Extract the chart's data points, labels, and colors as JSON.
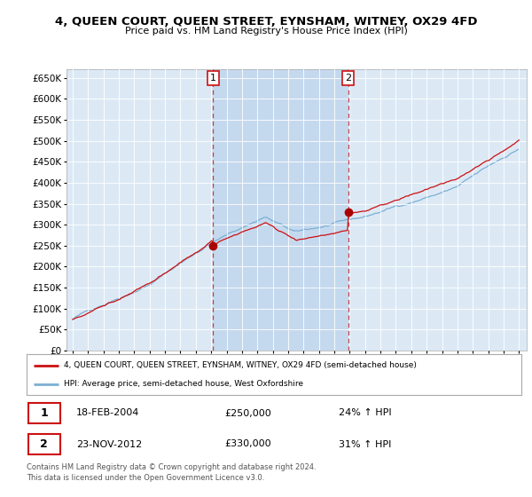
{
  "title": "4, QUEEN COURT, QUEEN STREET, EYNSHAM, WITNEY, OX29 4FD",
  "subtitle": "Price paid vs. HM Land Registry's House Price Index (HPI)",
  "ylim": [
    0,
    670000
  ],
  "yticks": [
    0,
    50000,
    100000,
    150000,
    200000,
    250000,
    300000,
    350000,
    400000,
    450000,
    500000,
    550000,
    600000,
    650000
  ],
  "background_color": "#dce9f5",
  "shade_color": "#c5d9ee",
  "legend_label_red": "4, QUEEN COURT, QUEEN STREET, EYNSHAM, WITNEY, OX29 4FD (semi-detached house)",
  "legend_label_blue": "HPI: Average price, semi-detached house, West Oxfordshire",
  "transaction1_date": "18-FEB-2004",
  "transaction1_price": 250000,
  "transaction1_hpi": "24% ↑ HPI",
  "transaction2_date": "23-NOV-2012",
  "transaction2_price": 330000,
  "transaction2_hpi": "31% ↑ HPI",
  "footer": "Contains HM Land Registry data © Crown copyright and database right 2024.\nThis data is licensed under the Open Government Licence v3.0.",
  "vline1_x": 2004.12,
  "vline2_x": 2012.9,
  "marker1_y": 250000,
  "marker2_y": 330000,
  "xlim_left": 1994.6,
  "xlim_right": 2024.5
}
